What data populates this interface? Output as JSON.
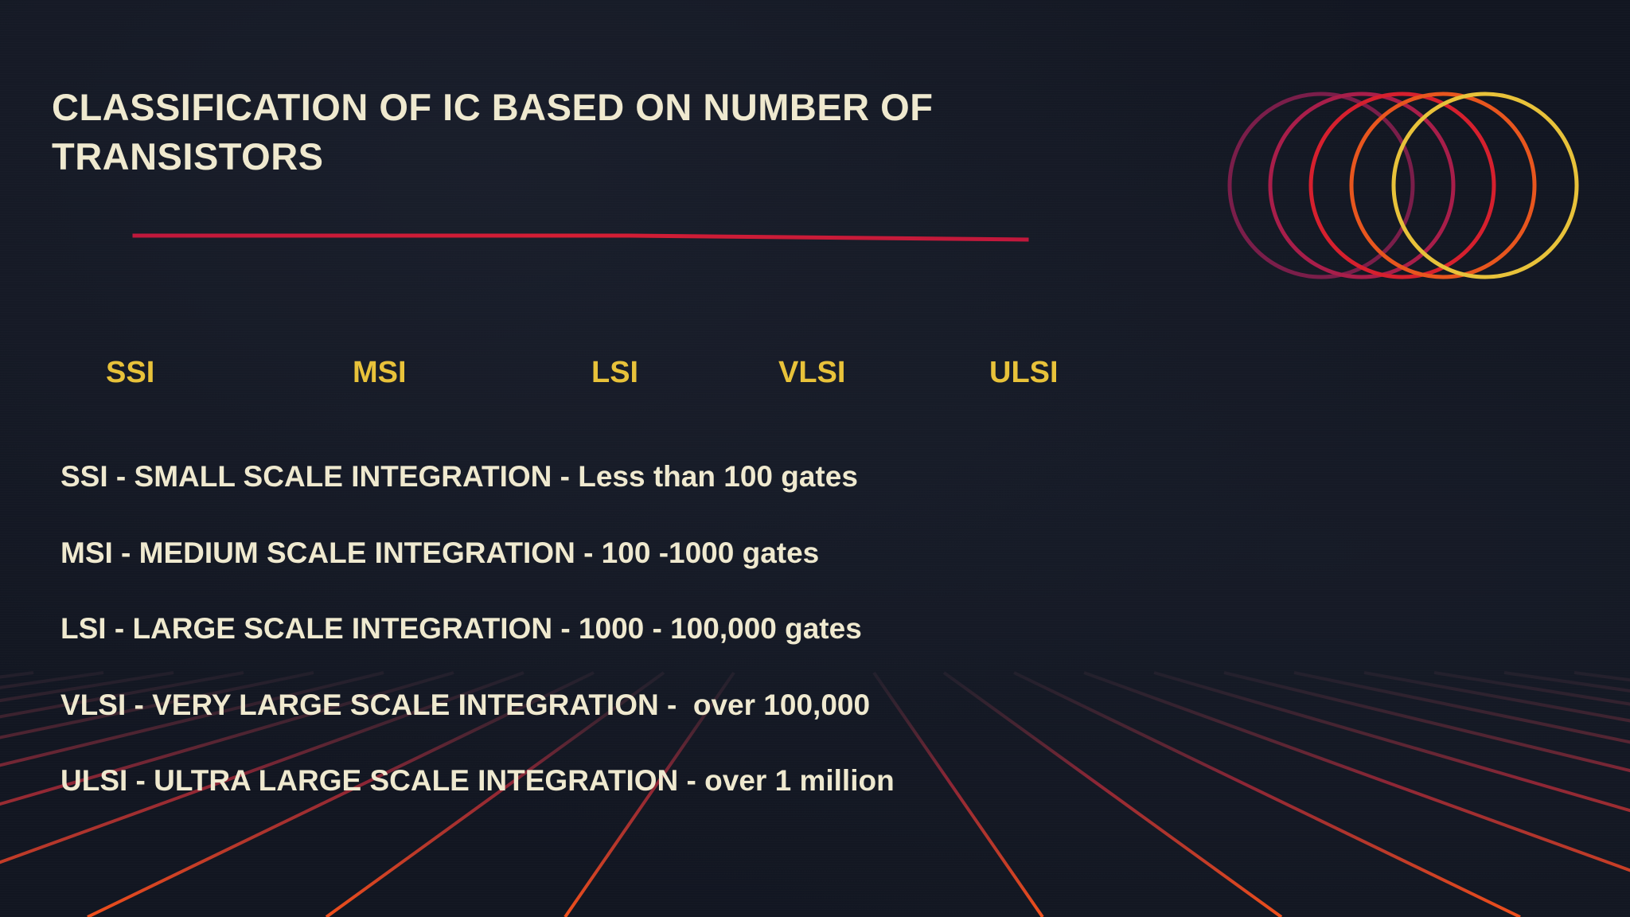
{
  "slide": {
    "title_lines": [
      "CLASSIFICATION OF IC BASED ON NUMBER OF",
      "TRANSISTORS"
    ],
    "tree": {
      "nodes": [
        "SSI",
        "MSI",
        "LSI",
        "VLSI",
        "ULSI"
      ]
    },
    "definitions": [
      "SSI - SMALL SCALE INTEGRATION - Less than 100 gates",
      "MSI - MEDIUM SCALE INTEGRATION - 100 -1000 gates",
      "LSI - LARGE SCALE INTEGRATION - 1000 - 100,000 gates",
      "VLSI - VERY LARGE SCALE INTEGRATION -  over 100,000",
      "ULSI - ULTRA LARGE SCALE INTEGRATION - over 1 million"
    ]
  },
  "colors": {
    "background": "#121621",
    "title_text": "#efe9cf",
    "node_label": "#e8c23a",
    "tree_line": "#c41a3a",
    "grid_far": "#5a3a48",
    "grid_near": "#e8461e",
    "ring_colors": [
      "#7a1e4a",
      "#a81e4a",
      "#d6202e",
      "#e8561e",
      "#e8c23a"
    ]
  }
}
